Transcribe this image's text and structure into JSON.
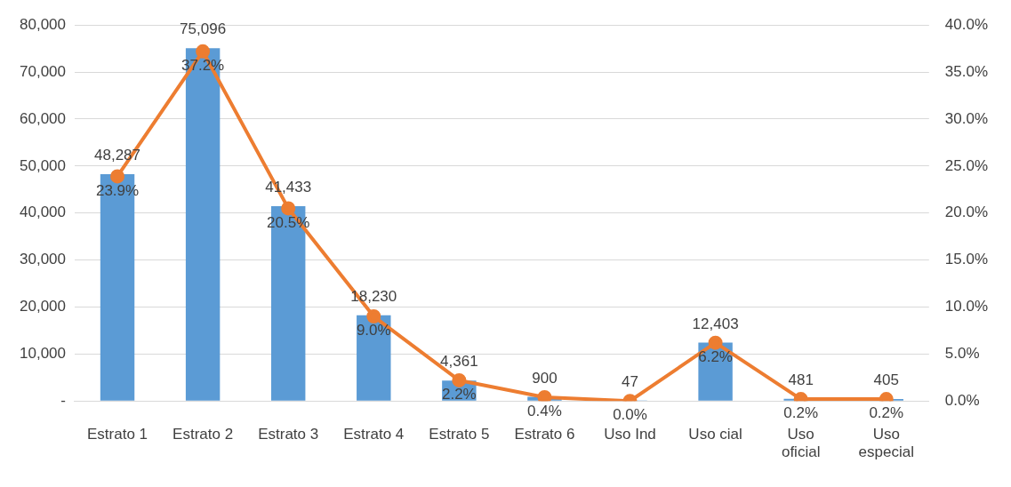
{
  "chart_data": {
    "type": "bar",
    "categories": [
      "Estrato 1",
      "Estrato 2",
      "Estrato 3",
      "Estrato 4",
      "Estrato 5",
      "Estrato 6",
      "Uso Ind",
      "Uso cial",
      "Uso oficial",
      "Uso especial"
    ],
    "series": [
      {
        "color": "#5b9bd5",
        "values": [
          48287,
          75096,
          41433,
          18230,
          4361,
          900,
          47,
          12403,
          481,
          405
        ],
        "value_labels": [
          "48,287",
          "75,096",
          "41,433",
          "18,230",
          "4,361",
          "900",
          "47",
          "12,403",
          "481",
          "405"
        ]
      },
      {
        "type": "line",
        "axis": "y2",
        "color": "#ed7d31",
        "marker": "circle",
        "line_style": "solid",
        "values": [
          23.9,
          37.2,
          20.5,
          9.0,
          2.2,
          0.4,
          0.0,
          6.2,
          0.2,
          0.2
        ],
        "value_labels": [
          "23.9%",
          "37.2%",
          "20.5%",
          "9.0%",
          "2.2%",
          "0.4%",
          "0.0%",
          "6.2%",
          "0.2%",
          "0.2%"
        ]
      }
    ],
    "ylim": [
      0,
      80000
    ],
    "yticks": [
      {
        "value": 0,
        "label": "-"
      },
      {
        "value": 10000,
        "label": "10,000"
      },
      {
        "value": 20000,
        "label": "20,000"
      },
      {
        "value": 30000,
        "label": "30,000"
      },
      {
        "value": 40000,
        "label": "40,000"
      },
      {
        "value": 50000,
        "label": "50,000"
      },
      {
        "value": 60000,
        "label": "60,000"
      },
      {
        "value": 70000,
        "label": "70,000"
      },
      {
        "value": 80000,
        "label": "80,000"
      }
    ],
    "y2lim": [
      0,
      40
    ],
    "y2ticks": [
      {
        "value": 0,
        "label": "0.0%"
      },
      {
        "value": 5,
        "label": "5.0%"
      },
      {
        "value": 10,
        "label": "10.0%"
      },
      {
        "value": 15,
        "label": "15.0%"
      },
      {
        "value": 20,
        "label": "20.0%"
      },
      {
        "value": 25,
        "label": "25.0%"
      },
      {
        "value": 30,
        "label": "30.0%"
      },
      {
        "value": 35,
        "label": "35.0%"
      },
      {
        "value": 40,
        "label": "40.0%"
      }
    ],
    "grid": "y",
    "legend": false
  }
}
